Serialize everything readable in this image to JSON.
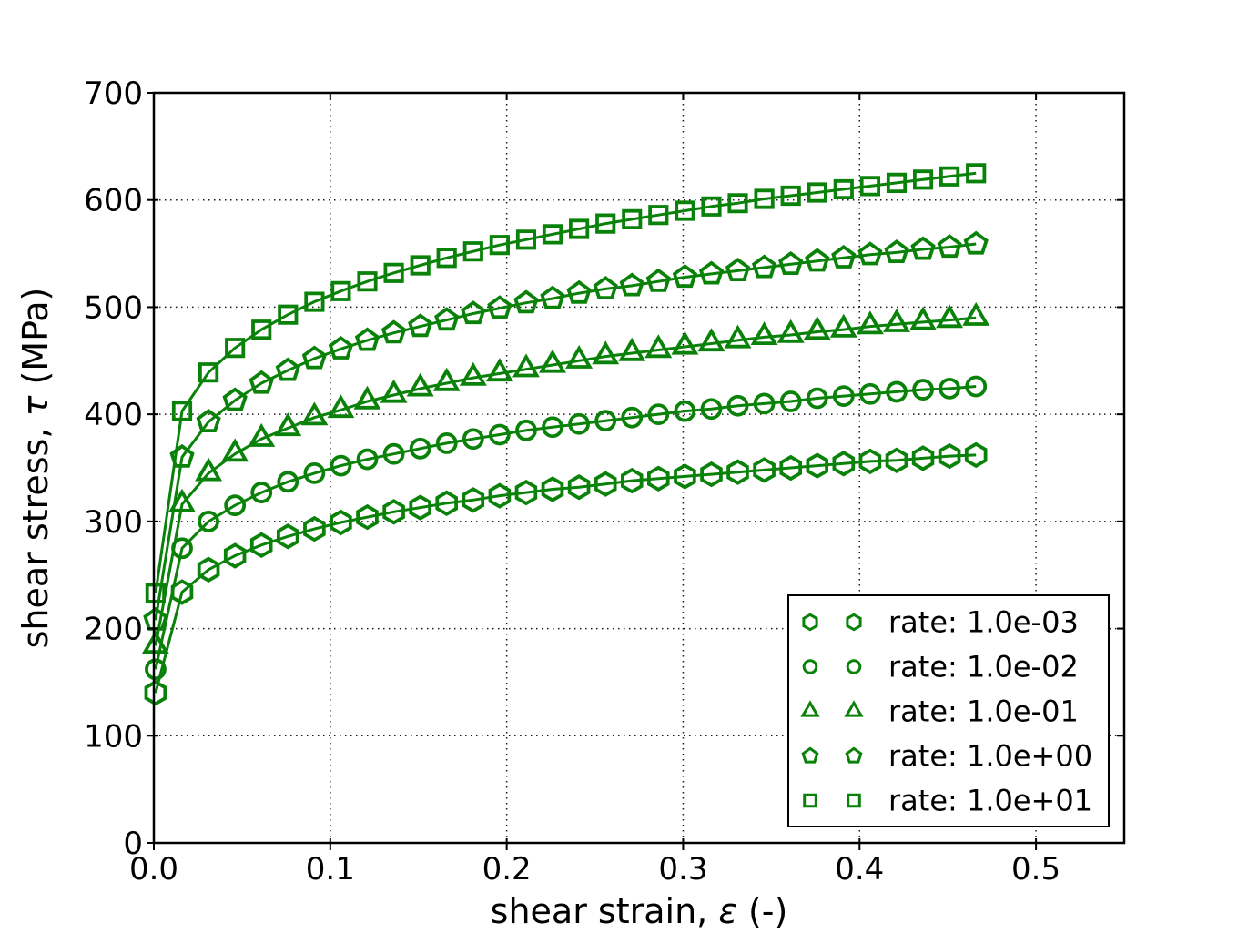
{
  "figure": {
    "background": "#ffffff",
    "series_color": "#0a820a",
    "grid_color": "#000000",
    "axis_color": "#000000",
    "marker_fill": "none"
  },
  "chart_data": {
    "type": "line",
    "title": "",
    "xlabel": {
      "prefix": "shear strain, ",
      "symbol": "ε",
      "suffix": " (-)"
    },
    "ylabel": {
      "prefix": "shear stress, ",
      "symbol": "τ",
      "suffix": " (MPa)"
    },
    "xlim": [
      0,
      0.55
    ],
    "ylim": [
      0,
      700
    ],
    "grid": true,
    "legend_position": "lower right",
    "xticks": [
      {
        "v": 0.0,
        "label": "0.0"
      },
      {
        "v": 0.1,
        "label": "0.1"
      },
      {
        "v": 0.2,
        "label": "0.2"
      },
      {
        "v": 0.3,
        "label": "0.3"
      },
      {
        "v": 0.4,
        "label": "0.4"
      },
      {
        "v": 0.5,
        "label": "0.5"
      }
    ],
    "yticks": [
      {
        "v": 0,
        "label": "0"
      },
      {
        "v": 100,
        "label": "100"
      },
      {
        "v": 200,
        "label": "200"
      },
      {
        "v": 300,
        "label": "300"
      },
      {
        "v": 400,
        "label": "400"
      },
      {
        "v": 500,
        "label": "500"
      },
      {
        "v": 600,
        "label": "600"
      },
      {
        "v": 700,
        "label": "700"
      }
    ],
    "x": [
      0.001,
      0.016,
      0.031,
      0.046,
      0.061,
      0.076,
      0.091,
      0.106,
      0.121,
      0.136,
      0.151,
      0.166,
      0.181,
      0.196,
      0.211,
      0.226,
      0.241,
      0.256,
      0.271,
      0.286,
      0.301,
      0.316,
      0.331,
      0.346,
      0.361,
      0.376,
      0.391,
      0.406,
      0.421,
      0.436,
      0.451,
      0.466
    ],
    "series": [
      {
        "name": "rate: 1.0e-03",
        "marker": "hexagon",
        "values": [
          140,
          234,
          255,
          268,
          278,
          286,
          293,
          299,
          304,
          309,
          313,
          317,
          320,
          324,
          327,
          330,
          332,
          335,
          338,
          340,
          342,
          344,
          346,
          348,
          350,
          352,
          354,
          356,
          357,
          359,
          361,
          362
        ]
      },
      {
        "name": "rate: 1.0e-02",
        "marker": "circle",
        "values": [
          162,
          275,
          300,
          315,
          327,
          337,
          345,
          352,
          358,
          363,
          368,
          373,
          377,
          381,
          385,
          388,
          391,
          394,
          397,
          400,
          403,
          405,
          408,
          410,
          412,
          415,
          417,
          419,
          421,
          423,
          424,
          426
        ]
      },
      {
        "name": "rate: 1.0e-01",
        "marker": "triangle",
        "values": [
          184,
          316,
          345,
          363,
          377,
          387,
          397,
          404,
          412,
          418,
          424,
          429,
          434,
          438,
          442,
          446,
          450,
          454,
          457,
          460,
          463,
          466,
          469,
          472,
          474,
          477,
          479,
          482,
          484,
          486,
          488,
          490
        ]
      },
      {
        "name": "rate: 1.0e+00",
        "marker": "pentagon",
        "values": [
          208,
          360,
          393,
          413,
          429,
          441,
          452,
          461,
          469,
          476,
          482,
          488,
          494,
          499,
          504,
          508,
          513,
          517,
          520,
          524,
          528,
          531,
          534,
          537,
          540,
          543,
          546,
          549,
          551,
          554,
          556,
          559
        ]
      },
      {
        "name": "rate: 1.0e+01",
        "marker": "square",
        "values": [
          233,
          403,
          439,
          462,
          479,
          493,
          505,
          515,
          524,
          532,
          539,
          546,
          552,
          558,
          563,
          568,
          573,
          578,
          582,
          586,
          590,
          594,
          597,
          601,
          604,
          607,
          610,
          613,
          616,
          619,
          622,
          625
        ]
      }
    ]
  }
}
